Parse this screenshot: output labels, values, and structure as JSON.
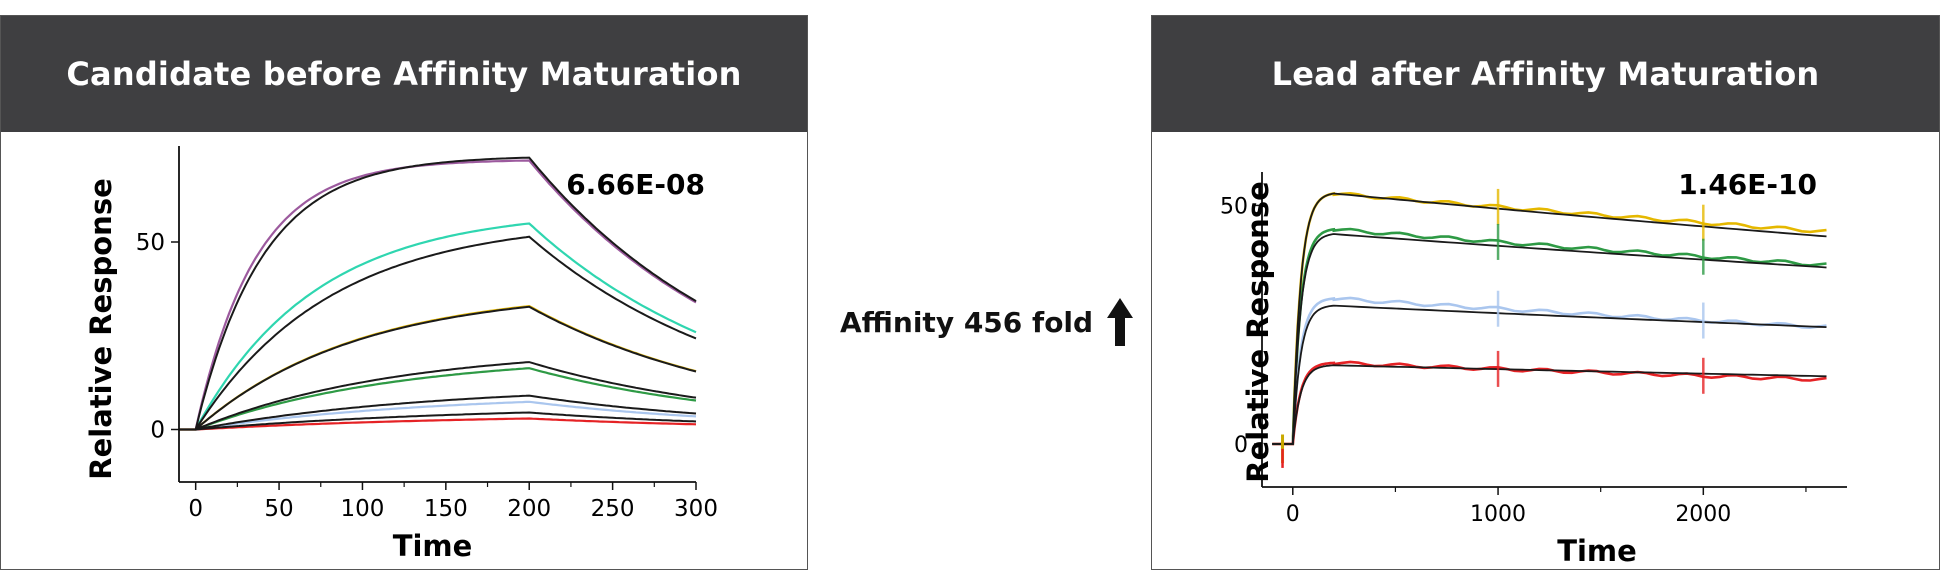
{
  "panels": {
    "left_title": "Candidate before Affinity Maturation",
    "right_title": "Lead after Affinity Maturation"
  },
  "middle": {
    "label": "Affinity 456 fold",
    "icon": "up-arrow-icon"
  },
  "chart_data": [
    {
      "type": "line",
      "title": "Candidate before Affinity Maturation",
      "xlabel": "Time",
      "ylabel": "Relative Response",
      "annotation": "6.66E-08",
      "xlim": [
        -10,
        300
      ],
      "ylim": [
        -14,
        74
      ],
      "xticks": [
        0,
        50,
        100,
        150,
        200,
        250,
        300
      ],
      "yticks": [
        0,
        50
      ],
      "grid": false,
      "assoc_end": 200,
      "series": [
        {
          "color": "#9c5a9e",
          "plateau": 72,
          "k_on": 0.028,
          "k_off": 0.0075
        },
        {
          "color": "#2fd6b0",
          "plateau": 58.5,
          "k_on": 0.014,
          "k_off": 0.0075
        },
        {
          "color": "#e5b800",
          "plateau": 37.5,
          "k_on": 0.0105,
          "k_off": 0.0075
        },
        {
          "color": "#2e9a45",
          "plateau": 20,
          "k_on": 0.0085,
          "k_off": 0.0075
        },
        {
          "color": "#aac6ee",
          "plateau": 9.8,
          "k_on": 0.007,
          "k_off": 0.0075
        },
        {
          "color": "#e52225",
          "plateau": 4.2,
          "k_on": 0.006,
          "k_off": 0.0075
        }
      ],
      "fits": [
        {
          "plateau": 73,
          "k_on": 0.025
        },
        {
          "plateau": 56,
          "k_on": 0.0125
        },
        {
          "plateau": 37.3,
          "k_on": 0.0105
        },
        {
          "plateau": 22,
          "k_on": 0.0085
        },
        {
          "plateau": 12,
          "k_on": 0.007
        },
        {
          "plateau": 6.5,
          "k_on": 0.006
        }
      ]
    },
    {
      "type": "line",
      "title": "Lead after Affinity Maturation",
      "xlabel": "Time",
      "ylabel": "Relative Response",
      "annotation": "1.46E-10",
      "xlim": [
        -150,
        2700
      ],
      "ylim": [
        -9,
        57
      ],
      "xticks": [
        0,
        1000,
        2000
      ],
      "yticks": [
        0,
        50
      ],
      "grid": false,
      "assoc_end": 200,
      "series": [
        {
          "color": "#e5b800",
          "peak": 52.5,
          "end": 44.5
        },
        {
          "color": "#2e9a45",
          "peak": 45,
          "end": 37.5
        },
        {
          "color": "#aac6ee",
          "peak": 30.5,
          "end": 24.5
        },
        {
          "color": "#e52225",
          "peak": 17,
          "end": 13.5
        }
      ],
      "fits": [
        {
          "peak": 52.5,
          "end": 43.5
        },
        {
          "peak": 44,
          "end": 37
        },
        {
          "peak": 29,
          "end": 24.5
        },
        {
          "peak": 16.5,
          "end": 14.2
        }
      ],
      "markers_x": [
        1000,
        2000
      ]
    }
  ]
}
